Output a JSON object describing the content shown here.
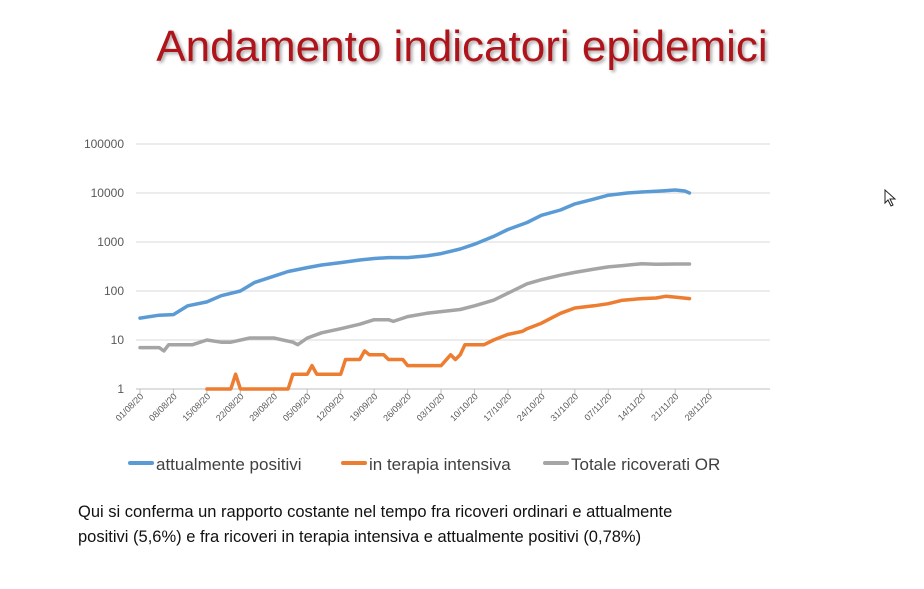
{
  "slide": {
    "title": "Andamento indicatori epidemici",
    "caption_line1": "Qui si conferma un rapporto costante nel tempo fra ricoveri ordinari e attualmente",
    "caption_line2": "positivi (5,6%) e fra ricoveri in terapia intensiva e attualmente positivi (0,78%)",
    "title_color": "#b0141b"
  },
  "chart_data": {
    "type": "line",
    "title": "",
    "xlabel": "",
    "ylabel": "",
    "y_scale": "log",
    "ylim": [
      1,
      100000
    ],
    "y_ticks": [
      "1",
      "10",
      "100",
      "1000",
      "10000",
      "100000"
    ],
    "x_tick_labels": [
      "01/08/20",
      "08/08/20",
      "15/08/20",
      "22/08/20",
      "29/08/20",
      "05/09/20",
      "12/09/20",
      "19/09/20",
      "26/09/20",
      "03/10/20",
      "10/10/20",
      "17/10/20",
      "24/10/20",
      "31/10/20",
      "07/11/20",
      "14/11/20",
      "21/11/20",
      "28/11/20"
    ],
    "grid": true,
    "legend_position": "bottom",
    "series": [
      {
        "name": "attualmente positivi",
        "color": "#5b9bd5",
        "points": [
          [
            "01/08/20",
            28
          ],
          [
            "05/08/20",
            32
          ],
          [
            "08/08/20",
            33
          ],
          [
            "11/08/20",
            50
          ],
          [
            "15/08/20",
            60
          ],
          [
            "18/08/20",
            80
          ],
          [
            "22/08/20",
            100
          ],
          [
            "25/08/20",
            150
          ],
          [
            "29/08/20",
            200
          ],
          [
            "01/09/20",
            250
          ],
          [
            "05/09/20",
            300
          ],
          [
            "08/09/20",
            340
          ],
          [
            "12/09/20",
            380
          ],
          [
            "16/09/20",
            430
          ],
          [
            "19/09/20",
            460
          ],
          [
            "22/09/20",
            480
          ],
          [
            "26/09/20",
            480
          ],
          [
            "30/09/20",
            520
          ],
          [
            "03/10/20",
            580
          ],
          [
            "07/10/20",
            720
          ],
          [
            "10/10/20",
            900
          ],
          [
            "14/10/20",
            1300
          ],
          [
            "17/10/20",
            1800
          ],
          [
            "21/10/20",
            2500
          ],
          [
            "24/10/20",
            3500
          ],
          [
            "28/10/20",
            4500
          ],
          [
            "31/10/20",
            6000
          ],
          [
            "04/11/20",
            7500
          ],
          [
            "07/11/20",
            9000
          ],
          [
            "11/11/20",
            10000
          ],
          [
            "14/11/20",
            10500
          ],
          [
            "18/11/20",
            11000
          ],
          [
            "21/11/20",
            11500
          ],
          [
            "23/11/20",
            11000
          ],
          [
            "24/11/20",
            10000
          ]
        ]
      },
      {
        "name": "in terapia intensiva",
        "color": "#ed7d31",
        "points": [
          [
            "15/08/20",
            1
          ],
          [
            "20/08/20",
            1
          ],
          [
            "21/08/20",
            2
          ],
          [
            "22/08/20",
            1
          ],
          [
            "28/08/20",
            1
          ],
          [
            "01/09/20",
            1
          ],
          [
            "02/09/20",
            2
          ],
          [
            "05/09/20",
            2
          ],
          [
            "06/09/20",
            3
          ],
          [
            "07/09/20",
            2
          ],
          [
            "12/09/20",
            2
          ],
          [
            "13/09/20",
            4
          ],
          [
            "16/09/20",
            4
          ],
          [
            "17/09/20",
            6
          ],
          [
            "18/09/20",
            5
          ],
          [
            "21/09/20",
            5
          ],
          [
            "22/09/20",
            4
          ],
          [
            "25/09/20",
            4
          ],
          [
            "26/09/20",
            3
          ],
          [
            "03/10/20",
            3
          ],
          [
            "05/10/20",
            5
          ],
          [
            "06/10/20",
            4
          ],
          [
            "07/10/20",
            5
          ],
          [
            "08/10/20",
            8
          ],
          [
            "12/10/20",
            8
          ],
          [
            "14/10/20",
            10
          ],
          [
            "17/10/20",
            13
          ],
          [
            "20/10/20",
            15
          ],
          [
            "21/10/20",
            17
          ],
          [
            "24/10/20",
            22
          ],
          [
            "28/10/20",
            35
          ],
          [
            "31/10/20",
            45
          ],
          [
            "04/11/20",
            50
          ],
          [
            "07/11/20",
            55
          ],
          [
            "10/11/20",
            65
          ],
          [
            "14/11/20",
            70
          ],
          [
            "17/11/20",
            72
          ],
          [
            "19/11/20",
            78
          ],
          [
            "21/11/20",
            75
          ],
          [
            "24/11/20",
            70
          ]
        ]
      },
      {
        "name": "Totale ricoverati OR",
        "color": "#a5a5a5",
        "points": [
          [
            "01/08/20",
            7
          ],
          [
            "05/08/20",
            7
          ],
          [
            "06/08/20",
            6
          ],
          [
            "07/08/20",
            8
          ],
          [
            "12/08/20",
            8
          ],
          [
            "15/08/20",
            10
          ],
          [
            "18/08/20",
            9
          ],
          [
            "20/08/20",
            9
          ],
          [
            "24/08/20",
            11
          ],
          [
            "29/08/20",
            11
          ],
          [
            "02/09/20",
            9
          ],
          [
            "03/09/20",
            8
          ],
          [
            "05/09/20",
            11
          ],
          [
            "08/09/20",
            14
          ],
          [
            "12/09/20",
            17
          ],
          [
            "16/09/20",
            21
          ],
          [
            "19/09/20",
            26
          ],
          [
            "22/09/20",
            26
          ],
          [
            "23/09/20",
            24
          ],
          [
            "26/09/20",
            30
          ],
          [
            "30/09/20",
            35
          ],
          [
            "03/10/20",
            38
          ],
          [
            "07/10/20",
            42
          ],
          [
            "10/10/20",
            50
          ],
          [
            "14/10/20",
            65
          ],
          [
            "17/10/20",
            90
          ],
          [
            "21/10/20",
            140
          ],
          [
            "24/10/20",
            170
          ],
          [
            "28/10/20",
            210
          ],
          [
            "31/10/20",
            240
          ],
          [
            "04/11/20",
            280
          ],
          [
            "07/11/20",
            310
          ],
          [
            "10/11/20",
            330
          ],
          [
            "14/11/20",
            360
          ],
          [
            "17/11/20",
            350
          ],
          [
            "21/11/20",
            355
          ],
          [
            "24/11/20",
            355
          ]
        ]
      }
    ]
  }
}
